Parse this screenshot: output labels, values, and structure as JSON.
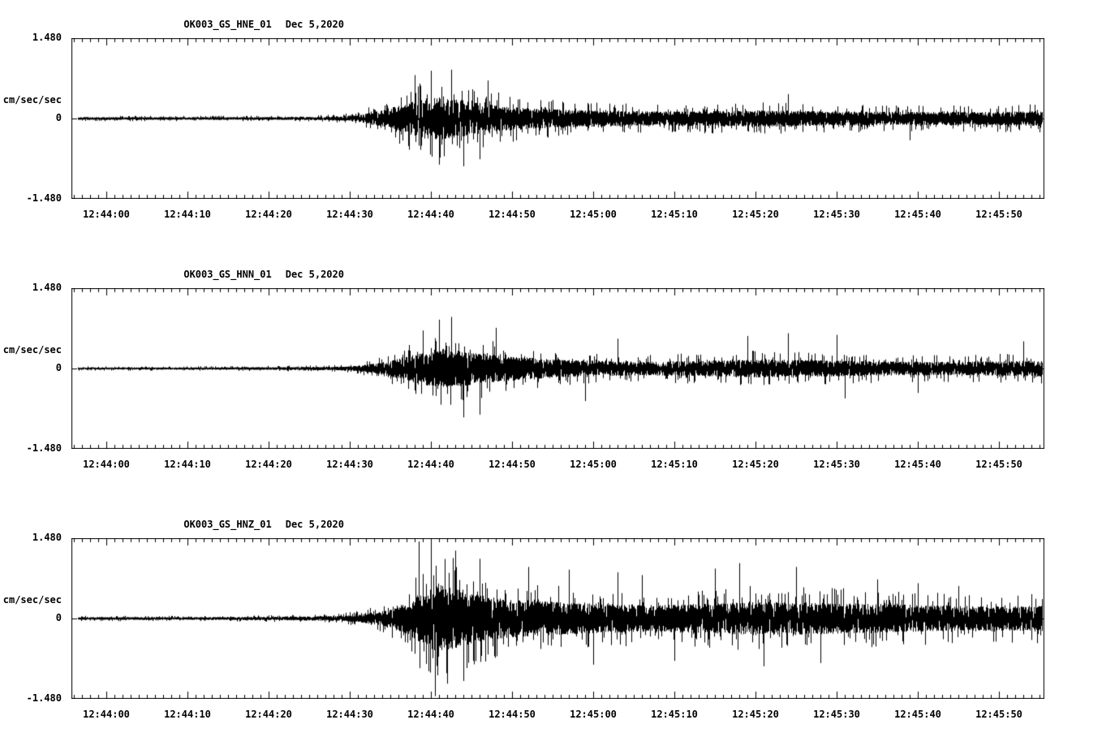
{
  "figure": {
    "background": "#ffffff",
    "trace_color": "#000000",
    "axis_color": "#000000"
  },
  "time_axis": {
    "tick_labels": [
      "12:44:00",
      "12:44:10",
      "12:44:20",
      "12:44:30",
      "12:44:40",
      "12:44:50",
      "12:45:00",
      "12:45:10",
      "12:45:20",
      "12:45:30",
      "12:45:40",
      "12:45:50"
    ],
    "label_spacing_seconds": 10,
    "minor_tick_interval_seconds": 1,
    "window_start_offset_s": -4.3,
    "window_end_offset_s": 115.6
  },
  "chart_data": [
    {
      "type": "line",
      "variant": "seismogram",
      "title": "OK003_GS_HNE_01",
      "date_label": "Dec 5,2020",
      "ylabel": "cm/sec/sec",
      "ylim": [
        -1.48,
        1.48
      ],
      "y_tick_labels": [
        "1.480",
        "0",
        "-1.480"
      ],
      "x_window": {
        "start": "12:43:56",
        "end": "12:45:56"
      },
      "envelope_t_s": [
        -4.3,
        10,
        20,
        26,
        29,
        31,
        33,
        35,
        37,
        39,
        41,
        43,
        45,
        47,
        50,
        53,
        56,
        60,
        64,
        68,
        72,
        76,
        80,
        84,
        88,
        92,
        96,
        100,
        104,
        108,
        112,
        115.6
      ],
      "envelope_amp": [
        0.05,
        0.05,
        0.05,
        0.06,
        0.08,
        0.12,
        0.25,
        0.4,
        0.55,
        0.75,
        0.78,
        0.72,
        0.62,
        0.52,
        0.44,
        0.38,
        0.33,
        0.3,
        0.28,
        0.26,
        0.27,
        0.28,
        0.3,
        0.3,
        0.26,
        0.26,
        0.25,
        0.24,
        0.25,
        0.24,
        0.26,
        0.28
      ],
      "spikes": [
        [
          38,
          0.8
        ],
        [
          40,
          0.88
        ],
        [
          41,
          -0.85
        ],
        [
          42.5,
          0.9
        ],
        [
          44,
          -0.88
        ],
        [
          46,
          -0.75
        ],
        [
          47,
          0.7
        ],
        [
          84,
          0.45
        ],
        [
          99,
          -0.4
        ]
      ],
      "noise_seed": 11
    },
    {
      "type": "line",
      "variant": "seismogram",
      "title": "OK003_GS_HNN_01",
      "date_label": "Dec 5,2020",
      "ylabel": "cm/sec/sec",
      "ylim": [
        -1.48,
        1.48
      ],
      "y_tick_labels": [
        "1.480",
        "0",
        "-1.480"
      ],
      "x_window": {
        "start": "12:43:56",
        "end": "12:45:56"
      },
      "envelope_t_s": [
        -4.3,
        10,
        20,
        26,
        29,
        31,
        33,
        35,
        37,
        39,
        41,
        43,
        45,
        47,
        50,
        53,
        56,
        60,
        64,
        68,
        72,
        76,
        80,
        84,
        88,
        92,
        96,
        100,
        104,
        108,
        112,
        115.6
      ],
      "envelope_amp": [
        0.04,
        0.04,
        0.05,
        0.06,
        0.07,
        0.1,
        0.18,
        0.3,
        0.45,
        0.6,
        0.75,
        0.7,
        0.6,
        0.52,
        0.45,
        0.38,
        0.33,
        0.29,
        0.27,
        0.26,
        0.28,
        0.3,
        0.34,
        0.32,
        0.3,
        0.28,
        0.26,
        0.25,
        0.25,
        0.26,
        0.28,
        0.3
      ],
      "spikes": [
        [
          39,
          0.7
        ],
        [
          41,
          0.9
        ],
        [
          42.5,
          0.95
        ],
        [
          44,
          -0.9
        ],
        [
          46,
          -0.85
        ],
        [
          48,
          0.75
        ],
        [
          59,
          -0.6
        ],
        [
          63,
          0.55
        ],
        [
          79,
          0.6
        ],
        [
          84,
          0.65
        ],
        [
          90,
          0.62
        ],
        [
          91,
          -0.55
        ],
        [
          100,
          -0.45
        ],
        [
          113,
          0.5
        ]
      ],
      "noise_seed": 22
    },
    {
      "type": "line",
      "variant": "seismogram",
      "title": "OK003_GS_HNZ_01",
      "date_label": "Dec 5,2020",
      "ylabel": "cm/sec/sec",
      "ylim": [
        -1.48,
        1.48
      ],
      "y_tick_labels": [
        "1.480",
        "0",
        "-1.480"
      ],
      "x_window": {
        "start": "12:43:56",
        "end": "12:45:56"
      },
      "envelope_t_s": [
        -4.3,
        10,
        20,
        26,
        29,
        31,
        33,
        35,
        37,
        39,
        41,
        43,
        45,
        47,
        50,
        53,
        56,
        60,
        64,
        68,
        72,
        76,
        80,
        84,
        88,
        92,
        96,
        100,
        104,
        108,
        112,
        115.6
      ],
      "envelope_amp": [
        0.05,
        0.05,
        0.06,
        0.08,
        0.1,
        0.14,
        0.22,
        0.35,
        0.6,
        1.0,
        1.25,
        1.1,
        0.92,
        0.8,
        0.7,
        0.64,
        0.6,
        0.55,
        0.52,
        0.5,
        0.52,
        0.56,
        0.62,
        0.6,
        0.58,
        0.55,
        0.52,
        0.5,
        0.47,
        0.45,
        0.45,
        0.48
      ],
      "spikes": [
        [
          38.5,
          1.42
        ],
        [
          40,
          1.35
        ],
        [
          40.5,
          -1.43
        ],
        [
          42,
          -1.2
        ],
        [
          43,
          1.25
        ],
        [
          44,
          -1.15
        ],
        [
          46,
          1.1
        ],
        [
          52,
          0.95
        ],
        [
          57,
          0.9
        ],
        [
          60,
          -0.85
        ],
        [
          63,
          0.85
        ],
        [
          66,
          0.8
        ],
        [
          70,
          -0.78
        ],
        [
          75,
          0.92
        ],
        [
          78,
          1.02
        ],
        [
          81,
          -0.88
        ],
        [
          85,
          0.95
        ],
        [
          88,
          -0.82
        ],
        [
          95,
          0.72
        ],
        [
          100,
          0.65
        ],
        [
          105,
          0.6
        ]
      ],
      "noise_seed": 33
    }
  ]
}
